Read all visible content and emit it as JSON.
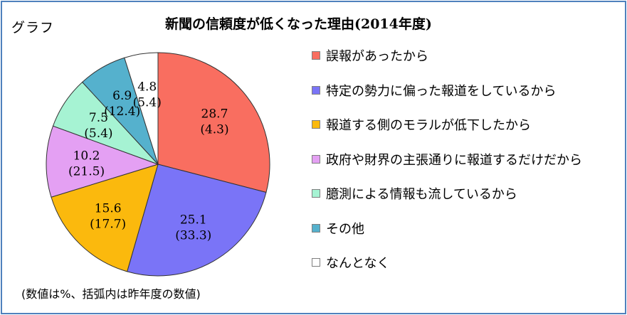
{
  "corner_label": "グラフ",
  "note": "(数値は%、括弧内は昨年度の数値)",
  "chart_data": {
    "type": "pie",
    "title": "新聞の信頼度が低くなった理由(2014年度)",
    "unit": "%",
    "legend_position": "right",
    "slices": [
      {
        "label": "誤報があったから",
        "value": 28.7,
        "previous": 4.3,
        "value_text": "28.7",
        "previous_text": "(4.3)",
        "color": "#f96e60"
      },
      {
        "label": "特定の勢力に偏った報道をしているから",
        "value": 25.1,
        "previous": 33.3,
        "value_text": "25.1",
        "previous_text": "(33.3)",
        "color": "#7a74f7"
      },
      {
        "label": "報道する側のモラルが低下したから",
        "value": 15.6,
        "previous": 17.7,
        "value_text": "15.6",
        "previous_text": "(17.7)",
        "color": "#fbb90d"
      },
      {
        "label": "政府や財界の主張通りに報道するだけだから",
        "value": 10.2,
        "previous": 21.5,
        "value_text": "10.2",
        "previous_text": "(21.5)",
        "color": "#e4a0f3"
      },
      {
        "label": "臆測による情報も流しているから",
        "value": 7.5,
        "previous": 5.4,
        "value_text": "7.5",
        "previous_text": "(5.4)",
        "color": "#a6f3d3"
      },
      {
        "label": "その他",
        "value": 6.9,
        "previous": 12.4,
        "value_text": "6.9",
        "previous_text": "(12.4)",
        "color": "#55b1cd"
      },
      {
        "label": "なんとなく",
        "value": 4.8,
        "previous": 5.4,
        "value_text": "4.8",
        "previous_text": "(5.4)",
        "color": "#ffffff"
      }
    ]
  }
}
